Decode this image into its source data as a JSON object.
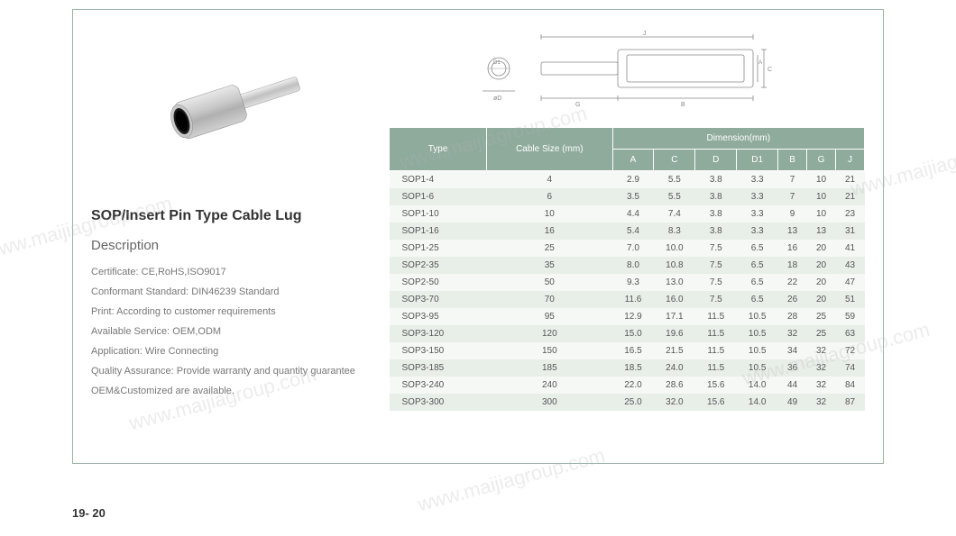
{
  "product": {
    "title": "SOP/Insert Pin Type Cable Lug",
    "desc_heading": "Description",
    "desc_lines": [
      "Certificate: CE,RoHS,ISO9017",
      "Conformant Standard: DIN46239 Standard",
      "Print: According to customer requirements",
      "Available Service: OEM,ODM",
      "Application: Wire Connecting",
      "Quality Assurance: Provide warranty and quantity guarantee",
      "OEM&Customized are available."
    ]
  },
  "table": {
    "header_type": "Type",
    "header_cable": "Cable Size (mm)",
    "header_dim": "Dimension(mm)",
    "dim_cols": [
      "A",
      "C",
      "D",
      "D1",
      "B",
      "G",
      "J"
    ],
    "header_bg": "#8fab9c",
    "header_fg": "#ffffff",
    "row_even_bg": "#e8efe9",
    "row_odd_bg": "#f5f8f5",
    "cell_fg": "#555555",
    "rows": [
      {
        "type": "SOP1-4",
        "cable": "4",
        "A": "2.9",
        "C": "5.5",
        "D": "3.8",
        "D1": "3.3",
        "B": "7",
        "G": "10",
        "J": "21"
      },
      {
        "type": "SOP1-6",
        "cable": "6",
        "A": "3.5",
        "C": "5.5",
        "D": "3.8",
        "D1": "3.3",
        "B": "7",
        "G": "10",
        "J": "21"
      },
      {
        "type": "SOP1-10",
        "cable": "10",
        "A": "4.4",
        "C": "7.4",
        "D": "3.8",
        "D1": "3.3",
        "B": "9",
        "G": "10",
        "J": "23"
      },
      {
        "type": "SOP1-16",
        "cable": "16",
        "A": "5.4",
        "C": "8.3",
        "D": "3.8",
        "D1": "3.3",
        "B": "13",
        "G": "13",
        "J": "31"
      },
      {
        "type": "SOP1-25",
        "cable": "25",
        "A": "7.0",
        "C": "10.0",
        "D": "7.5",
        "D1": "6.5",
        "B": "16",
        "G": "20",
        "J": "41"
      },
      {
        "type": "SOP2-35",
        "cable": "35",
        "A": "8.0",
        "C": "10.8",
        "D": "7.5",
        "D1": "6.5",
        "B": "18",
        "G": "20",
        "J": "43"
      },
      {
        "type": "SOP2-50",
        "cable": "50",
        "A": "9.3",
        "C": "13.0",
        "D": "7.5",
        "D1": "6.5",
        "B": "22",
        "G": "20",
        "J": "47"
      },
      {
        "type": "SOP3-70",
        "cable": "70",
        "A": "11.6",
        "C": "16.0",
        "D": "7.5",
        "D1": "6.5",
        "B": "26",
        "G": "20",
        "J": "51"
      },
      {
        "type": "SOP3-95",
        "cable": "95",
        "A": "12.9",
        "C": "17.1",
        "D": "11.5",
        "D1": "10.5",
        "B": "28",
        "G": "25",
        "J": "59"
      },
      {
        "type": "SOP3-120",
        "cable": "120",
        "A": "15.0",
        "C": "19.6",
        "D": "11.5",
        "D1": "10.5",
        "B": "32",
        "G": "25",
        "J": "63"
      },
      {
        "type": "SOP3-150",
        "cable": "150",
        "A": "16.5",
        "C": "21.5",
        "D": "11.5",
        "D1": "10.5",
        "B": "34",
        "G": "32",
        "J": "72"
      },
      {
        "type": "SOP3-185",
        "cable": "185",
        "A": "18.5",
        "C": "24.0",
        "D": "11.5",
        "D1": "10.5",
        "B": "36",
        "G": "32",
        "J": "74"
      },
      {
        "type": "SOP3-240",
        "cable": "240",
        "A": "22.0",
        "C": "28.6",
        "D": "15.6",
        "D1": "14.0",
        "B": "44",
        "G": "32",
        "J": "84"
      },
      {
        "type": "SOP3-300",
        "cable": "300",
        "A": "25.0",
        "C": "32.0",
        "D": "15.6",
        "D1": "14.0",
        "B": "49",
        "G": "32",
        "J": "87"
      }
    ]
  },
  "page_number": "19- 20",
  "watermark_text": "www.maijiagroup.com",
  "colors": {
    "border": "#9bb5a8",
    "title": "#333333",
    "desc": "#777777"
  }
}
